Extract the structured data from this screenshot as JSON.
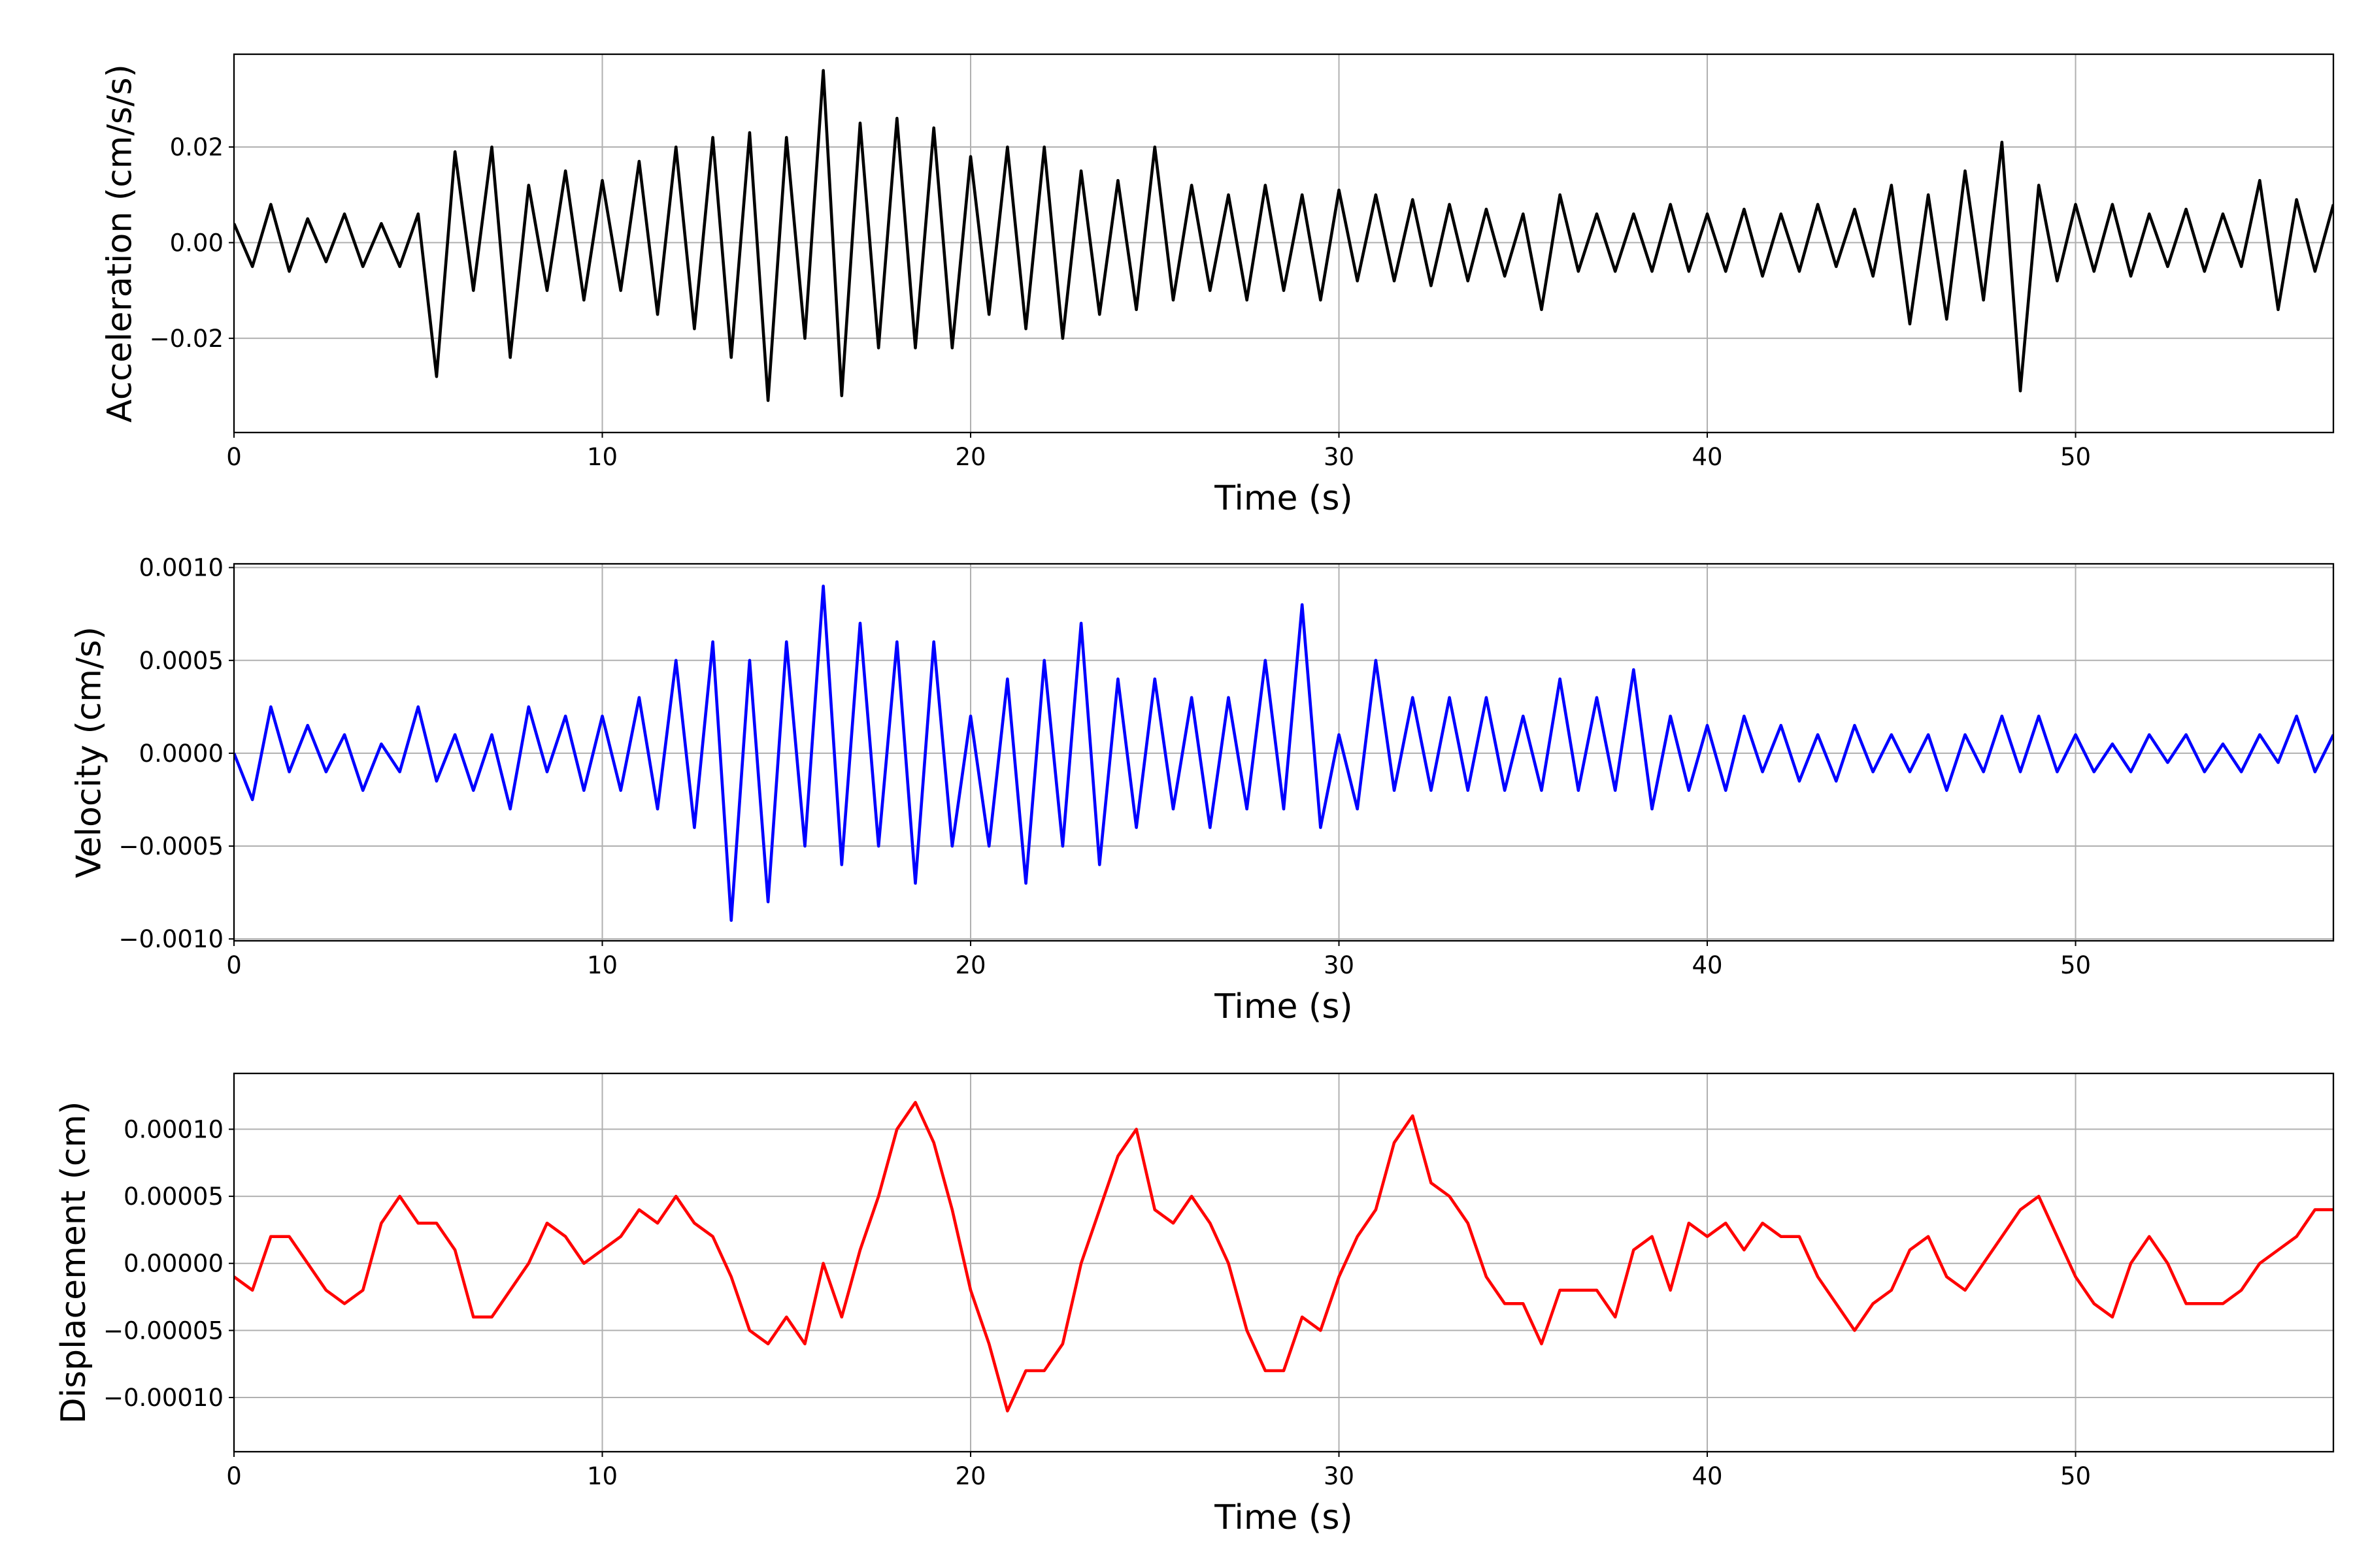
{
  "chart_data": [
    {
      "type": "line",
      "xlabel": "Time (s)",
      "ylabel": "Acceleration (cm/s/s)",
      "color": "#000000",
      "grid": true,
      "xlim": [
        0,
        57
      ],
      "xticks": [
        0,
        10,
        20,
        30,
        40,
        50
      ],
      "ylim": [
        -0.0397,
        0.0394
      ],
      "yticks": [
        {
          "value": -0.02,
          "label": "−0.02"
        },
        {
          "value": 0,
          "label": "0.00"
        },
        {
          "value": 0.02,
          "label": "0.02"
        }
      ],
      "x": [
        0,
        0.5,
        1,
        1.5,
        2,
        2.5,
        3,
        3.5,
        4,
        4.5,
        5,
        5.5,
        6,
        6.5,
        7,
        7.5,
        8,
        8.5,
        9,
        9.5,
        10,
        10.5,
        11,
        11.5,
        12,
        12.5,
        13,
        13.5,
        14,
        14.5,
        15,
        15.5,
        16,
        16.5,
        17,
        17.5,
        18,
        18.5,
        19,
        19.5,
        20,
        20.5,
        21,
        21.5,
        22,
        22.5,
        23,
        23.5,
        24,
        24.5,
        25,
        25.5,
        26,
        26.5,
        27,
        27.5,
        28,
        28.5,
        29,
        29.5,
        30,
        30.5,
        31,
        31.5,
        32,
        32.5,
        33,
        33.5,
        34,
        34.5,
        35,
        35.5,
        36,
        36.5,
        37,
        37.5,
        38,
        38.5,
        39,
        39.5,
        40,
        40.5,
        41,
        41.5,
        42,
        42.5,
        43,
        43.5,
        44,
        44.5,
        45,
        45.5,
        46,
        46.5,
        47,
        47.5,
        48,
        48.5,
        49,
        49.5,
        50,
        50.5,
        51,
        51.5,
        52,
        52.5,
        53,
        53.5,
        54,
        54.5,
        55,
        55.5,
        56,
        56.5,
        57
      ],
      "values": [
        0.004,
        -0.005,
        0.008,
        -0.006,
        0.005,
        -0.004,
        0.006,
        -0.005,
        0.004,
        -0.005,
        0.006,
        -0.028,
        0.019,
        -0.01,
        0.02,
        -0.024,
        0.012,
        -0.01,
        0.015,
        -0.012,
        0.013,
        -0.01,
        0.017,
        -0.015,
        0.02,
        -0.018,
        0.022,
        -0.024,
        0.023,
        -0.033,
        0.022,
        -0.02,
        0.036,
        -0.032,
        0.025,
        -0.022,
        0.026,
        -0.022,
        0.024,
        -0.022,
        0.018,
        -0.015,
        0.02,
        -0.018,
        0.02,
        -0.02,
        0.015,
        -0.015,
        0.013,
        -0.014,
        0.02,
        -0.012,
        0.012,
        -0.01,
        0.01,
        -0.012,
        0.012,
        -0.01,
        0.01,
        -0.012,
        0.011,
        -0.008,
        0.01,
        -0.008,
        0.009,
        -0.009,
        0.008,
        -0.008,
        0.007,
        -0.007,
        0.006,
        -0.014,
        0.01,
        -0.006,
        0.006,
        -0.006,
        0.006,
        -0.006,
        0.008,
        -0.006,
        0.006,
        -0.006,
        0.007,
        -0.007,
        0.006,
        -0.006,
        0.008,
        -0.005,
        0.007,
        -0.007,
        0.012,
        -0.017,
        0.01,
        -0.016,
        0.015,
        -0.012,
        0.021,
        -0.031,
        0.012,
        -0.008,
        0.008,
        -0.006,
        0.008,
        -0.007,
        0.006,
        -0.005,
        0.007,
        -0.006,
        0.006,
        -0.005,
        0.013,
        -0.014,
        0.009,
        -0.006,
        0.008
      ]
    },
    {
      "type": "line",
      "xlabel": "Time (s)",
      "ylabel": "Velocity (cm/s)",
      "color": "#0000ff",
      "grid": true,
      "xlim": [
        0,
        57
      ],
      "xticks": [
        0,
        10,
        20,
        30,
        40,
        50
      ],
      "ylim": [
        -0.00101,
        0.00102
      ],
      "yticks": [
        {
          "value": -0.001,
          "label": "−0.0010"
        },
        {
          "value": -0.0005,
          "label": "−0.0005"
        },
        {
          "value": 0,
          "label": "0.0000"
        },
        {
          "value": 0.0005,
          "label": "0.0005"
        },
        {
          "value": 0.001,
          "label": "0.0010"
        }
      ],
      "x": [
        0,
        0.5,
        1,
        1.5,
        2,
        2.5,
        3,
        3.5,
        4,
        4.5,
        5,
        5.5,
        6,
        6.5,
        7,
        7.5,
        8,
        8.5,
        9,
        9.5,
        10,
        10.5,
        11,
        11.5,
        12,
        12.5,
        13,
        13.5,
        14,
        14.5,
        15,
        15.5,
        16,
        16.5,
        17,
        17.5,
        18,
        18.5,
        19,
        19.5,
        20,
        20.5,
        21,
        21.5,
        22,
        22.5,
        23,
        23.5,
        24,
        24.5,
        25,
        25.5,
        26,
        26.5,
        27,
        27.5,
        28,
        28.5,
        29,
        29.5,
        30,
        30.5,
        31,
        31.5,
        32,
        32.5,
        33,
        33.5,
        34,
        34.5,
        35,
        35.5,
        36,
        36.5,
        37,
        37.5,
        38,
        38.5,
        39,
        39.5,
        40,
        40.5,
        41,
        41.5,
        42,
        42.5,
        43,
        43.5,
        44,
        44.5,
        45,
        45.5,
        46,
        46.5,
        47,
        47.5,
        48,
        48.5,
        49,
        49.5,
        50,
        50.5,
        51,
        51.5,
        52,
        52.5,
        53,
        53.5,
        54,
        54.5,
        55,
        55.5,
        56,
        56.5,
        57
      ],
      "values": [
        0.0,
        -0.00025,
        0.00025,
        -0.0001,
        0.00015,
        -0.0001,
        0.0001,
        -0.0002,
        5e-05,
        -0.0001,
        0.00025,
        -0.00015,
        0.0001,
        -0.0002,
        0.0001,
        -0.0003,
        0.00025,
        -0.0001,
        0.0002,
        -0.0002,
        0.0002,
        -0.0002,
        0.0003,
        -0.0003,
        0.0005,
        -0.0004,
        0.0006,
        -0.0009,
        0.0005,
        -0.0008,
        0.0006,
        -0.0005,
        0.0009,
        -0.0006,
        0.0007,
        -0.0005,
        0.0006,
        -0.0007,
        0.0006,
        -0.0005,
        0.0002,
        -0.0005,
        0.0004,
        -0.0007,
        0.0005,
        -0.0005,
        0.0007,
        -0.0006,
        0.0004,
        -0.0004,
        0.0004,
        -0.0003,
        0.0003,
        -0.0004,
        0.0003,
        -0.0003,
        0.0005,
        -0.0003,
        0.0008,
        -0.0004,
        0.0001,
        -0.0003,
        0.0005,
        -0.0002,
        0.0003,
        -0.0002,
        0.0003,
        -0.0002,
        0.0003,
        -0.0002,
        0.0002,
        -0.0002,
        0.0004,
        -0.0002,
        0.0003,
        -0.0002,
        0.00045,
        -0.0003,
        0.0002,
        -0.0002,
        0.00015,
        -0.0002,
        0.0002,
        -0.0001,
        0.00015,
        -0.00015,
        0.0001,
        -0.00015,
        0.00015,
        -0.0001,
        0.0001,
        -0.0001,
        0.0001,
        -0.0002,
        0.0001,
        -0.0001,
        0.0002,
        -0.0001,
        0.0002,
        -0.0001,
        0.0001,
        -0.0001,
        5e-05,
        -0.0001,
        0.0001,
        -5e-05,
        0.0001,
        -0.0001,
        5e-05,
        -0.0001,
        0.0001,
        -5e-05,
        0.0002,
        -0.0001,
        0.0001
      ]
    },
    {
      "type": "line",
      "xlabel": "Time (s)",
      "ylabel": "Displacement (cm)",
      "color": "#ff0000",
      "grid": true,
      "xlim": [
        0,
        57
      ],
      "xticks": [
        0,
        10,
        20,
        30,
        40,
        50
      ],
      "ylim": [
        -0.0001404,
        0.0001416
      ],
      "yticks": [
        {
          "value": -0.0001,
          "label": "−0.00010"
        },
        {
          "value": -5e-05,
          "label": "−0.00005"
        },
        {
          "value": 0,
          "label": "0.00000"
        },
        {
          "value": 5e-05,
          "label": "0.00005"
        },
        {
          "value": 0.0001,
          "label": "0.00010"
        }
      ],
      "x": [
        0,
        0.5,
        1,
        1.5,
        2,
        2.5,
        3,
        3.5,
        4,
        4.5,
        5,
        5.5,
        6,
        6.5,
        7,
        7.5,
        8,
        8.5,
        9,
        9.5,
        10,
        10.5,
        11,
        11.5,
        12,
        12.5,
        13,
        13.5,
        14,
        14.5,
        15,
        15.5,
        16,
        16.5,
        17,
        17.5,
        18,
        18.5,
        19,
        19.5,
        20,
        20.5,
        21,
        21.5,
        22,
        22.5,
        23,
        23.5,
        24,
        24.5,
        25,
        25.5,
        26,
        26.5,
        27,
        27.5,
        28,
        28.5,
        29,
        29.5,
        30,
        30.5,
        31,
        31.5,
        32,
        32.5,
        33,
        33.5,
        34,
        34.5,
        35,
        35.5,
        36,
        36.5,
        37,
        37.5,
        38,
        38.5,
        39,
        39.5,
        40,
        40.5,
        41,
        41.5,
        42,
        42.5,
        43,
        43.5,
        44,
        44.5,
        45,
        45.5,
        46,
        46.5,
        47,
        47.5,
        48,
        48.5,
        49,
        49.5,
        50,
        50.5,
        51,
        51.5,
        52,
        52.5,
        53,
        53.5,
        54,
        54.5,
        55,
        55.5,
        56,
        56.5,
        57
      ],
      "values": [
        -1e-05,
        -2e-05,
        2e-05,
        2e-05,
        0.0,
        -2e-05,
        -3e-05,
        -2e-05,
        3e-05,
        5e-05,
        3e-05,
        3e-05,
        1e-05,
        -4e-05,
        -4e-05,
        -2e-05,
        0.0,
        3e-05,
        2e-05,
        0.0,
        1e-05,
        2e-05,
        4e-05,
        3e-05,
        5e-05,
        3e-05,
        2e-05,
        -1e-05,
        -5e-05,
        -6e-05,
        -4e-05,
        -6e-05,
        0.0,
        -4e-05,
        1e-05,
        5e-05,
        0.0001,
        0.00012,
        9e-05,
        4e-05,
        -2e-05,
        -6e-05,
        -0.00011,
        -8e-05,
        -8e-05,
        -6e-05,
        0.0,
        4e-05,
        8e-05,
        0.0001,
        4e-05,
        3e-05,
        5e-05,
        3e-05,
        0.0,
        -5e-05,
        -8e-05,
        -8e-05,
        -4e-05,
        -5e-05,
        -1e-05,
        2e-05,
        4e-05,
        9e-05,
        0.00011,
        6e-05,
        5e-05,
        3e-05,
        -1e-05,
        -3e-05,
        -3e-05,
        -6e-05,
        -2e-05,
        -2e-05,
        -2e-05,
        -4e-05,
        1e-05,
        2e-05,
        -2e-05,
        3e-05,
        2e-05,
        3e-05,
        1e-05,
        3e-05,
        2e-05,
        2e-05,
        -1e-05,
        -3e-05,
        -5e-05,
        -3e-05,
        -2e-05,
        1e-05,
        2e-05,
        -1e-05,
        -2e-05,
        0.0,
        2e-05,
        4e-05,
        5e-05,
        2e-05,
        -1e-05,
        -3e-05,
        -4e-05,
        0.0,
        2e-05,
        0.0,
        -3e-05,
        -3e-05,
        -3e-05,
        -2e-05,
        0.0,
        1e-05,
        2e-05,
        4e-05,
        4e-05
      ]
    }
  ]
}
